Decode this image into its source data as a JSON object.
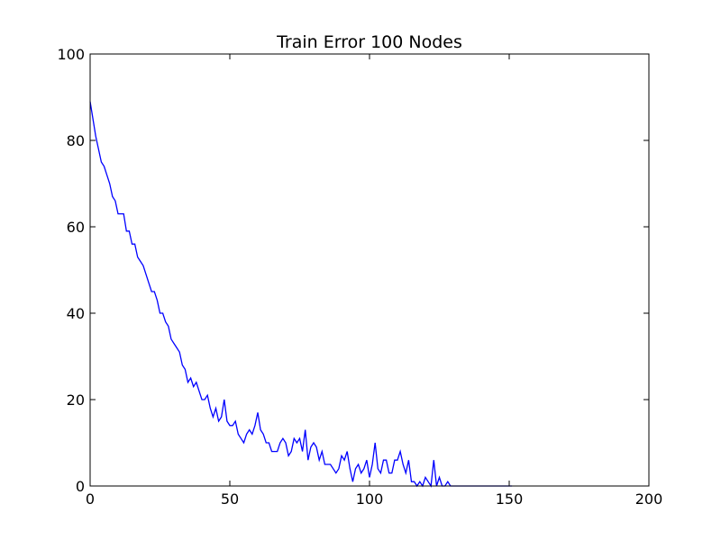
{
  "chart_data": {
    "type": "line",
    "title": "Train Error 100 Nodes",
    "xlabel": "",
    "ylabel": "",
    "xlim": [
      0,
      200
    ],
    "ylim": [
      0,
      100
    ],
    "xticks": [
      0,
      50,
      100,
      150,
      200
    ],
    "yticks": [
      0,
      20,
      40,
      60,
      80,
      100
    ],
    "xtick_labels": [
      "0",
      "50",
      "100",
      "150",
      "200"
    ],
    "ytick_labels": [
      "0",
      "20",
      "40",
      "60",
      "80",
      "100"
    ],
    "grid": false,
    "legend": "none",
    "line_color": "#0000ff",
    "series": [
      {
        "values": [
          89,
          85,
          81,
          78,
          75,
          74,
          72,
          70,
          67,
          66,
          63,
          63,
          63,
          59,
          59,
          56,
          56,
          53,
          52,
          51,
          49,
          47,
          45,
          45,
          43,
          40,
          40,
          38,
          37,
          34,
          33,
          32,
          31,
          28,
          27,
          24,
          25,
          23,
          24,
          22,
          20,
          20,
          21,
          18,
          16,
          18,
          15,
          16,
          20,
          15,
          14,
          14,
          15,
          12,
          11,
          10,
          12,
          13,
          12,
          14,
          17,
          13,
          12,
          10,
          10,
          8,
          8,
          8,
          10,
          11,
          10,
          7,
          8,
          11,
          10,
          11,
          8,
          13,
          6,
          9,
          10,
          9,
          6,
          8,
          5,
          5,
          5,
          4,
          3,
          4,
          7,
          6,
          8,
          4,
          1,
          4,
          5,
          3,
          4,
          6,
          2,
          5,
          10,
          4,
          3,
          6,
          6,
          3,
          3,
          6,
          6,
          8,
          5,
          3,
          6,
          1,
          1,
          0,
          1,
          0,
          2,
          1,
          0,
          6,
          0,
          2,
          0,
          0,
          1,
          0,
          0,
          0,
          0,
          0,
          0,
          0,
          0,
          0,
          0,
          0,
          0,
          0,
          0,
          0,
          0,
          0,
          0,
          0,
          0,
          0,
          0,
          0
        ]
      }
    ]
  }
}
